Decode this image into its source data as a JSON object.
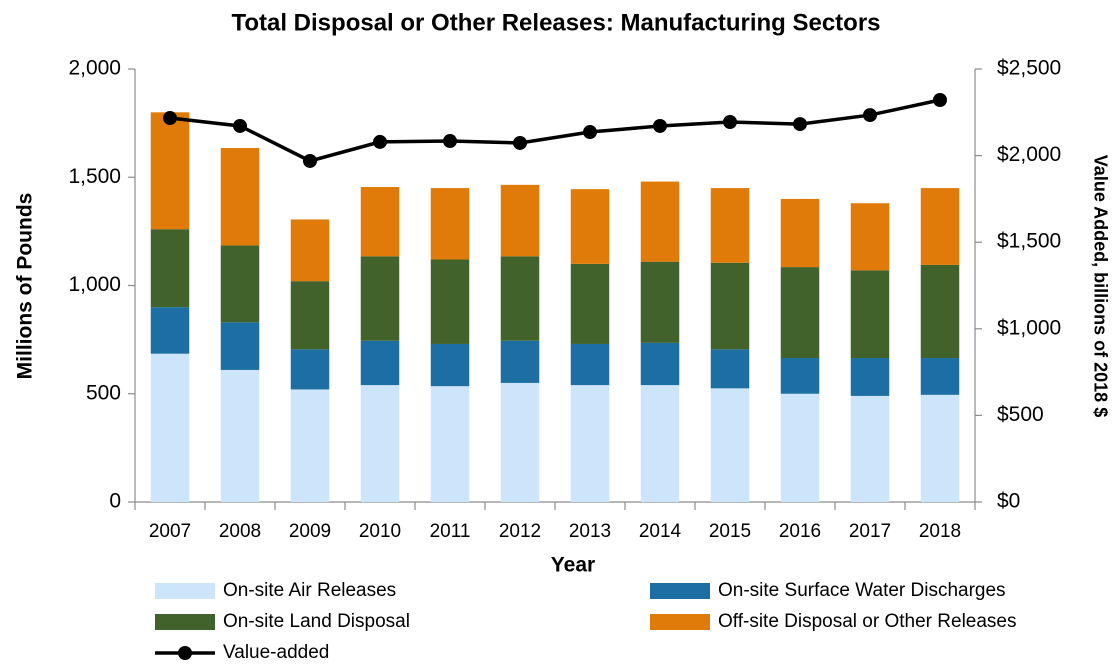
{
  "chart_data": {
    "type": "bar",
    "title": "Total Disposal or Other Releases: Manufacturing Sectors",
    "xlabel": "Year",
    "ylabel": "Millions of Pounds",
    "y2label": "Value Added, billions of 2018 $",
    "categories": [
      "2007",
      "2008",
      "2009",
      "2010",
      "2011",
      "2012",
      "2013",
      "2014",
      "2015",
      "2016",
      "2017",
      "2018"
    ],
    "stacked": true,
    "series": [
      {
        "name": "On-site Air Releases",
        "color": "#cde5fb",
        "values": [
          685,
          610,
          520,
          540,
          535,
          550,
          540,
          540,
          525,
          500,
          490,
          495
        ]
      },
      {
        "name": "On-site Surface Water Discharges",
        "color": "#1d6fa3",
        "values": [
          215,
          220,
          185,
          205,
          195,
          195,
          190,
          195,
          180,
          165,
          175,
          170
        ]
      },
      {
        "name": "On-site Land Disposal",
        "color": "#41622a",
        "values": [
          360,
          355,
          315,
          390,
          390,
          390,
          370,
          375,
          400,
          420,
          405,
          430
        ]
      },
      {
        "name": "Off-site Disposal or Other Releases",
        "color": "#e07b0a",
        "values": [
          540,
          450,
          285,
          320,
          330,
          330,
          345,
          370,
          345,
          315,
          310,
          355
        ]
      },
      {
        "name": "Value-added",
        "type": "line",
        "axis": "y2",
        "color": "#000000",
        "values": [
          2217,
          2171,
          1969,
          2079,
          2084,
          2073,
          2136,
          2171,
          2194,
          2182,
          2234,
          2321
        ]
      }
    ],
    "ylim": [
      0,
      2000
    ],
    "yticks": [
      0,
      500,
      {
        "value": 1000,
        "label": "1,000"
      },
      {
        "value": 1500,
        "label": "1,500"
      },
      {
        "value": 2000,
        "label": "2,000"
      }
    ],
    "y2lim": [
      0,
      2500
    ],
    "y2ticks": [
      {
        "value": 0,
        "label": "$0"
      },
      {
        "value": 500,
        "label": "$500"
      },
      {
        "value": 1000,
        "label": "$1,000"
      },
      {
        "value": 1500,
        "label": "$1,500"
      },
      {
        "value": 2000,
        "label": "$2,000"
      },
      {
        "value": 2500,
        "label": "$2,500"
      }
    ],
    "grid": false,
    "legend": "bottom"
  }
}
